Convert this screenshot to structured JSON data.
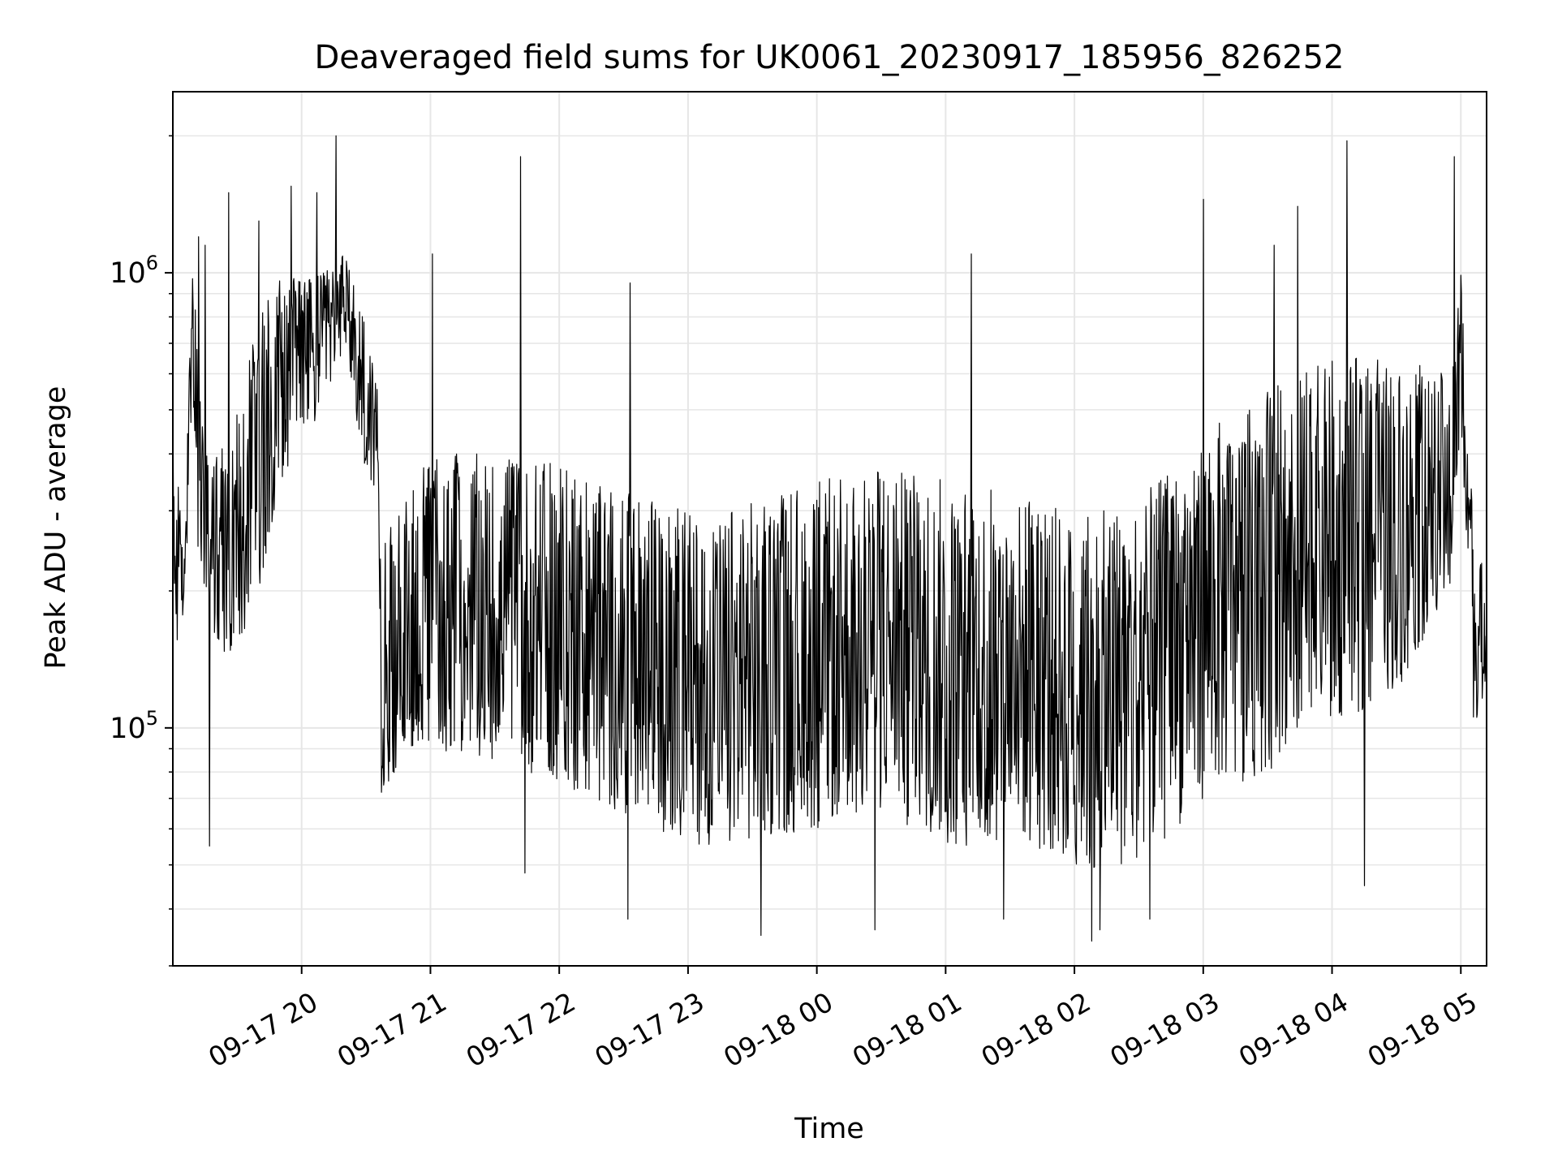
{
  "chart_data": {
    "type": "line",
    "title": "Deaveraged field sums for UK0061_20230917_185956_826252",
    "xlabel": "Time",
    "ylabel": "Peak ADU - average",
    "yscale": "log",
    "ylim": [
      30000,
      2500000
    ],
    "xlim": [
      "2023-09-17 19:00",
      "2023-09-18 05:12"
    ],
    "grid": true,
    "line_color": "#000000",
    "grid_color": "#e6e6e6",
    "x_ticks": [
      {
        "value": "2023-09-17 20:00",
        "label": "09-17 20"
      },
      {
        "value": "2023-09-17 21:00",
        "label": "09-17 21"
      },
      {
        "value": "2023-09-17 22:00",
        "label": "09-17 22"
      },
      {
        "value": "2023-09-17 23:00",
        "label": "09-17 23"
      },
      {
        "value": "2023-09-18 00:00",
        "label": "09-18 00"
      },
      {
        "value": "2023-09-18 01:00",
        "label": "09-18 01"
      },
      {
        "value": "2023-09-18 02:00",
        "label": "09-18 02"
      },
      {
        "value": "2023-09-18 03:00",
        "label": "09-18 03"
      },
      {
        "value": "2023-09-18 04:00",
        "label": "09-18 04"
      },
      {
        "value": "2023-09-18 05:00",
        "label": "09-18 05"
      }
    ],
    "y_ticks": [
      {
        "value": 100000,
        "base": "10",
        "exp": "5"
      },
      {
        "value": 1000000,
        "base": "10",
        "exp": "6"
      }
    ],
    "envelope": {
      "x": [
        "2023-09-17 19:00",
        "2023-09-17 19:05",
        "2023-09-17 19:09",
        "2023-09-17 19:12",
        "2023-09-17 19:15",
        "2023-09-17 19:20",
        "2023-09-17 19:30",
        "2023-09-17 19:40",
        "2023-09-17 19:50",
        "2023-09-17 20:00",
        "2023-09-17 20:10",
        "2023-09-17 20:20",
        "2023-09-17 20:30",
        "2023-09-17 20:36",
        "2023-09-17 20:37",
        "2023-09-17 20:45",
        "2023-09-17 21:00",
        "2023-09-17 21:30",
        "2023-09-17 22:00",
        "2023-09-17 22:30",
        "2023-09-17 23:00",
        "2023-09-17 23:30",
        "2023-09-18 00:00",
        "2023-09-18 00:30",
        "2023-09-18 01:00",
        "2023-09-18 01:30",
        "2023-09-18 02:00",
        "2023-09-18 02:20",
        "2023-09-18 02:40",
        "2023-09-18 03:00",
        "2023-09-18 03:30",
        "2023-09-18 04:00",
        "2023-09-18 04:30",
        "2023-09-18 04:55",
        "2023-09-18 05:00",
        "2023-09-18 05:03",
        "2023-09-18 05:06",
        "2023-09-18 05:12"
      ],
      "low": [
        150000,
        150000,
        550000,
        200000,
        180000,
        150000,
        140000,
        200000,
        350000,
        400000,
        500000,
        700000,
        350000,
        300000,
        70000,
        80000,
        90000,
        85000,
        75000,
        65000,
        55000,
        55000,
        60000,
        65000,
        55000,
        55000,
        50000,
        48000,
        55000,
        70000,
        80000,
        100000,
        120000,
        200000,
        400000,
        250000,
        100000,
        120000
      ],
      "high": [
        600000,
        220000,
        1000000,
        700000,
        400000,
        400000,
        500000,
        800000,
        1000000,
        1000000,
        1000000,
        1100000,
        800000,
        600000,
        250000,
        300000,
        400000,
        400000,
        380000,
        330000,
        300000,
        320000,
        350000,
        380000,
        350000,
        330000,
        300000,
        300000,
        350000,
        450000,
        550000,
        650000,
        650000,
        600000,
        1100000,
        700000,
        250000,
        220000
      ]
    },
    "peaks": [
      {
        "x": "2023-09-17 19:12",
        "value": 1200000
      },
      {
        "x": "2023-09-17 19:15",
        "value": 1150000
      },
      {
        "x": "2023-09-17 19:26",
        "value": 1500000
      },
      {
        "x": "2023-09-17 19:40",
        "value": 1300000
      },
      {
        "x": "2023-09-17 19:55",
        "value": 1550000
      },
      {
        "x": "2023-09-17 20:07",
        "value": 1500000
      },
      {
        "x": "2023-09-17 20:16",
        "value": 2000000
      },
      {
        "x": "2023-09-17 21:01",
        "value": 1100000
      },
      {
        "x": "2023-09-17 21:42",
        "value": 1800000
      },
      {
        "x": "2023-09-17 22:33",
        "value": 950000
      },
      {
        "x": "2023-09-18 01:12",
        "value": 1100000
      },
      {
        "x": "2023-09-18 03:00",
        "value": 1450000
      },
      {
        "x": "2023-09-18 03:33",
        "value": 1150000
      },
      {
        "x": "2023-09-18 03:44",
        "value": 1400000
      },
      {
        "x": "2023-09-18 04:07",
        "value": 1950000
      },
      {
        "x": "2023-09-18 04:57",
        "value": 1800000
      }
    ],
    "dips": [
      {
        "x": "2023-09-17 19:17",
        "value": 55000
      },
      {
        "x": "2023-09-17 21:44",
        "value": 48000
      },
      {
        "x": "2023-09-17 22:32",
        "value": 38000
      },
      {
        "x": "2023-09-17 23:34",
        "value": 35000
      },
      {
        "x": "2023-09-18 00:27",
        "value": 36000
      },
      {
        "x": "2023-09-18 01:27",
        "value": 38000
      },
      {
        "x": "2023-09-18 02:08",
        "value": 34000
      },
      {
        "x": "2023-09-18 02:12",
        "value": 36000
      },
      {
        "x": "2023-09-18 02:35",
        "value": 38000
      },
      {
        "x": "2023-09-18 04:15",
        "value": 45000
      }
    ]
  }
}
